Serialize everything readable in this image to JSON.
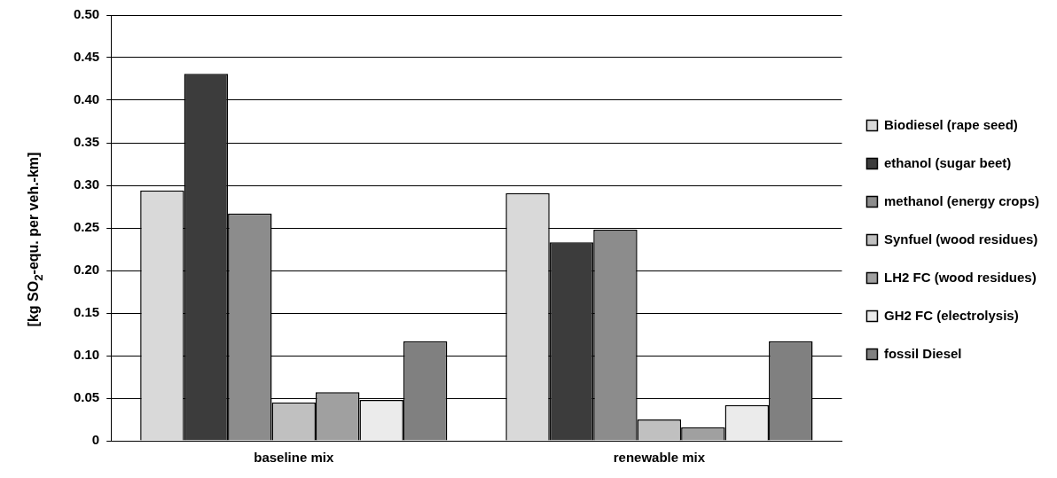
{
  "chart_data": {
    "type": "bar",
    "ylabel": "[kg SO$_{2}$-equ. per veh.-km]",
    "categories": [
      "baseline mix",
      "renewable mix"
    ],
    "series": [
      {
        "name": "Biodiesel (rape seed)",
        "color": "#d9d9d9",
        "values": [
          0.294,
          0.291
        ]
      },
      {
        "name": "ethanol (sugar beet)",
        "color": "#3c3c3c",
        "values": [
          0.431,
          0.233
        ]
      },
      {
        "name": "methanol (energy crops)",
        "color": "#8c8c8c",
        "values": [
          0.267,
          0.248
        ]
      },
      {
        "name": "Synfuel (wood residues)",
        "color": "#c0c0c0",
        "values": [
          0.045,
          0.025
        ]
      },
      {
        "name": "LH2 FC (wood residues)",
        "color": "#a0a0a0",
        "values": [
          0.057,
          0.016
        ]
      },
      {
        "name": "GH2 FC (electrolysis)",
        "color": "#ebebeb",
        "values": [
          0.048,
          0.042
        ]
      },
      {
        "name": "fossil Diesel",
        "color": "#808080",
        "values": [
          0.117,
          0.117
        ]
      }
    ],
    "ylim": [
      0,
      0.5
    ],
    "yticks": [
      0,
      0.05,
      {
        "value": 0.1,
        "label": "0.10"
      },
      0.15,
      {
        "value": 0.2,
        "label": "0.20"
      },
      0.25,
      {
        "value": 0.3,
        "label": "0.30"
      },
      0.35,
      {
        "value": 0.4,
        "label": "0.40"
      },
      0.45,
      {
        "value": 0.5,
        "label": "0.50"
      }
    ],
    "grid": "y",
    "legend": "right"
  }
}
